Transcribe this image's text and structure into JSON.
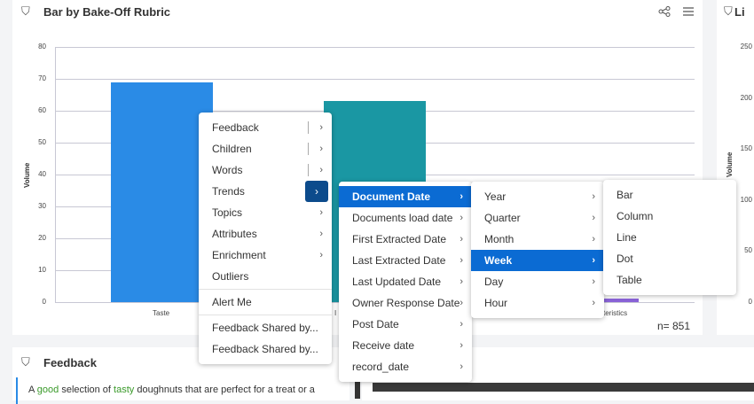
{
  "left_panel": {
    "title": "Bar by Bake-Off Rubric",
    "filter_icon": "funnel-icon",
    "share_icon": "share-icon",
    "menu_icon": "hamburger-icon",
    "sample_size": "n= 851"
  },
  "right_panel": {
    "title": "Li",
    "y_ticks": [
      "250",
      "200",
      "150",
      "100",
      "50",
      "0"
    ],
    "ylabel": "Volume"
  },
  "feedback_panel": {
    "title": "Feedback",
    "snippet_parts": [
      "A ",
      "good",
      " selection of ",
      "tasty",
      " doughnuts that are perfect for a treat or a"
    ]
  },
  "chart_data": {
    "type": "bar",
    "categories": [
      "Taste",
      "I",
      "teristics"
    ],
    "values": [
      69,
      63,
      1
    ],
    "colors": [
      "#2a8be6",
      "#1a97a3",
      "#8a63d8"
    ],
    "ylabel": "Volume",
    "xlabel": "",
    "ylim": [
      0,
      80
    ],
    "y_ticks": [
      "0",
      "10",
      "20",
      "30",
      "40",
      "50",
      "60",
      "70",
      "80"
    ],
    "grid": true
  },
  "context_menu": {
    "items": [
      {
        "label": "Feedback",
        "submenu": true
      },
      {
        "label": "Children",
        "submenu": true
      },
      {
        "label": "Words",
        "submenu": true
      },
      {
        "label": "Trends",
        "submenu": true,
        "active": true
      },
      {
        "label": "Topics",
        "submenu": true
      },
      {
        "label": "Attributes",
        "submenu": true
      },
      {
        "label": "Enrichment",
        "submenu": true
      },
      {
        "label": "Outliers"
      },
      {
        "label": "Alert Me"
      },
      {
        "label": "Feedback Shared by..."
      },
      {
        "label": "Feedback Shared by..."
      }
    ]
  },
  "date_menu": {
    "items": [
      "Document Date",
      "Documents load date",
      "First Extracted Date",
      "Last Extracted Date",
      "Last Updated Date",
      "Owner Response Date",
      "Post Date",
      "Receive date",
      "record_date"
    ],
    "selected": "Document Date"
  },
  "period_menu": {
    "items": [
      "Year",
      "Quarter",
      "Month",
      "Week",
      "Day",
      "Hour"
    ],
    "selected": "Week"
  },
  "chart_type_menu": {
    "items": [
      "Bar",
      "Column",
      "Line",
      "Dot",
      "Table"
    ]
  },
  "colors": {
    "accent": "#0b6bd3",
    "active_button": "#0c4b8c"
  }
}
